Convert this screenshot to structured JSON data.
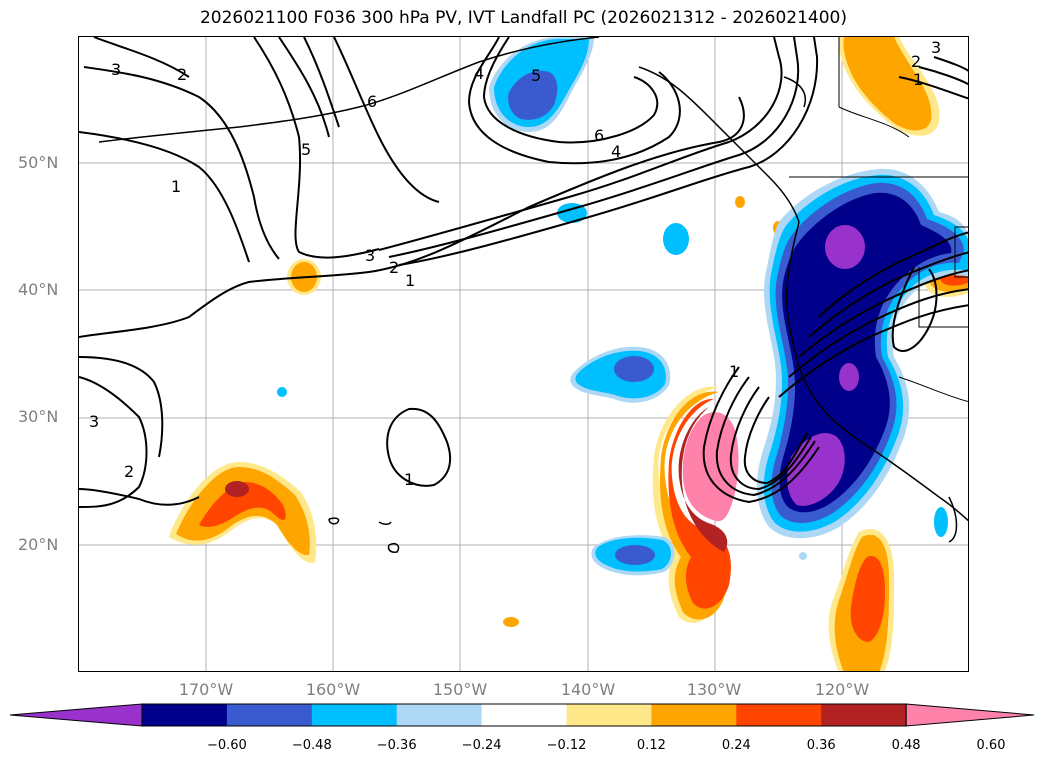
{
  "title": "2026021100 F036 300 hPa PV, IVT Landfall PC (2026021312 - 2026021400)",
  "map": {
    "lat_labels": [
      "50°N",
      "40°N",
      "30°N",
      "20°N"
    ],
    "lon_labels": [
      "170°W",
      "160°W",
      "150°W",
      "140°W",
      "130°W",
      "120°W"
    ],
    "contour_labels": [
      "3",
      "2",
      "6",
      "5",
      "1",
      "3",
      "2",
      "1",
      "4",
      "5",
      "6",
      "4",
      "2",
      "1",
      "3",
      "3",
      "2",
      "1",
      "1"
    ]
  },
  "colorbar": {
    "tick_labels": [
      "−0.60",
      "−0.48",
      "−0.36",
      "−0.24",
      "−0.12",
      "0.12",
      "0.24",
      "0.36",
      "0.48",
      "0.60"
    ],
    "colors": [
      "#9932cc",
      "#00008b",
      "#3a5bcf",
      "#00bfff",
      "#add8f5",
      "#ffffff",
      "#ffe88a",
      "#ffa500",
      "#ff4500",
      "#b22222",
      "#ff82ab"
    ]
  }
}
